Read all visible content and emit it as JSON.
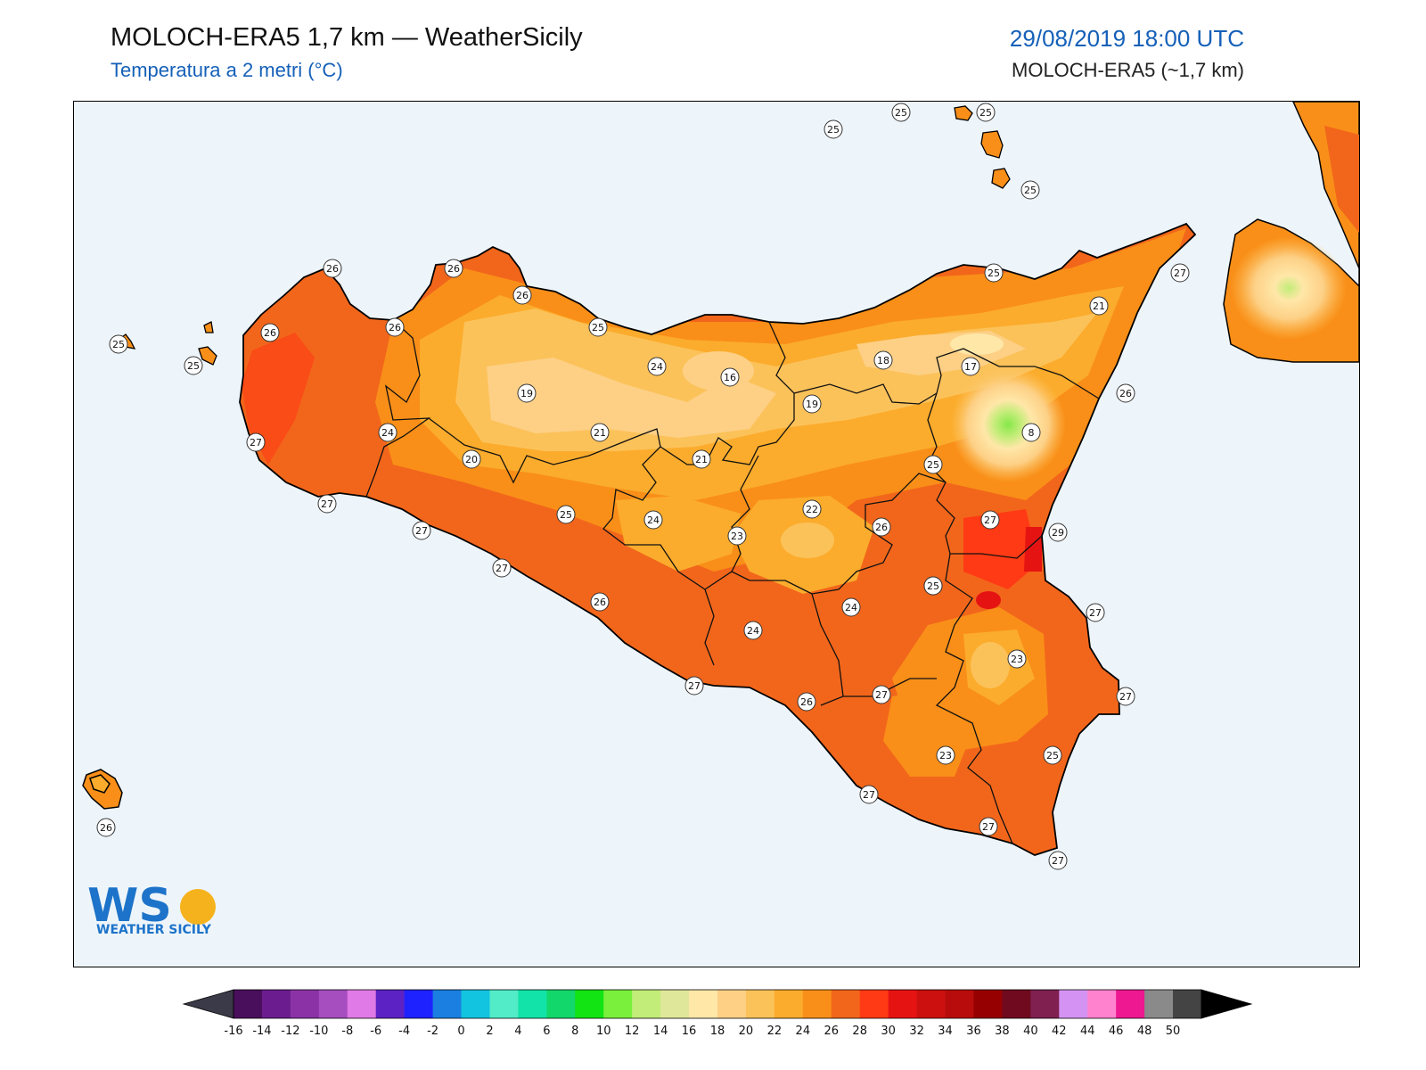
{
  "header": {
    "title": "MOLOCH-ERA5 1,7 km — WeatherSicily",
    "subtitle": "Temperatura a 2 metri (°C)",
    "datetime": "29/08/2019 18:00 UTC",
    "model": "MOLOCH-ERA5 (~1,7 km)"
  },
  "logo": {
    "letters": "WS",
    "text": "WEATHER SICILY"
  },
  "colors": {
    "sea": "#eef5fa",
    "t16": "#ffe7a8",
    "t18": "#fdd086",
    "t20": "#fcc25a",
    "t22": "#fbac2c",
    "t24": "#f98f18",
    "t26": "#f2661b",
    "t28": "#ff3a14",
    "t30": "#e61313",
    "green": "#86e84a"
  },
  "map_labels": [
    {
      "v": "25"
    },
    {
      "v": "25"
    },
    {
      "v": "25"
    },
    {
      "v": "25"
    },
    {
      "v": "26"
    },
    {
      "v": "26"
    },
    {
      "v": "26"
    },
    {
      "v": "26"
    },
    {
      "v": "26"
    },
    {
      "v": "25"
    },
    {
      "v": "25"
    },
    {
      "v": "25"
    },
    {
      "v": "27"
    },
    {
      "v": "25"
    },
    {
      "v": "27"
    },
    {
      "v": "24"
    },
    {
      "v": "20"
    },
    {
      "v": "19"
    },
    {
      "v": "21"
    },
    {
      "v": "24"
    },
    {
      "v": "16"
    },
    {
      "v": "21"
    },
    {
      "v": "18"
    },
    {
      "v": "19"
    },
    {
      "v": "17"
    },
    {
      "v": "25"
    },
    {
      "v": "21"
    },
    {
      "v": "27"
    },
    {
      "v": "26"
    },
    {
      "v": "8"
    },
    {
      "v": "25"
    },
    {
      "v": "22"
    },
    {
      "v": "26"
    },
    {
      "v": "27"
    },
    {
      "v": "29"
    },
    {
      "v": "27"
    },
    {
      "v": "25"
    },
    {
      "v": "24"
    },
    {
      "v": "23"
    },
    {
      "v": "25"
    },
    {
      "v": "24"
    },
    {
      "v": "24"
    },
    {
      "v": "26"
    },
    {
      "v": "27"
    },
    {
      "v": "27"
    },
    {
      "v": "26"
    },
    {
      "v": "27"
    },
    {
      "v": "23"
    },
    {
      "v": "27"
    },
    {
      "v": "27"
    },
    {
      "v": "23"
    },
    {
      "v": "25"
    },
    {
      "v": "27"
    },
    {
      "v": "27"
    },
    {
      "v": "27"
    },
    {
      "v": "26"
    }
  ],
  "colorbar": {
    "ticks": [
      "-16",
      "-14",
      "-12",
      "-10",
      "-8",
      "-6",
      "-4",
      "-2",
      "0",
      "2",
      "4",
      "6",
      "8",
      "10",
      "12",
      "14",
      "16",
      "18",
      "20",
      "22",
      "24",
      "26",
      "28",
      "30",
      "32",
      "34",
      "36",
      "38",
      "40",
      "42",
      "44",
      "46",
      "48",
      "50"
    ],
    "colors": [
      "#4a0f5c",
      "#6b1d8f",
      "#8b33a6",
      "#a64dbf",
      "#e07ae6",
      "#5c22c4",
      "#1e22ff",
      "#1a7fe0",
      "#12c4e0",
      "#52ecc8",
      "#12e3a8",
      "#12d76a",
      "#12e312",
      "#7aef3c",
      "#c2ed78",
      "#dfe89a",
      "#ffe7a8",
      "#fdd086",
      "#fcc25a",
      "#fbac2c",
      "#f98f18",
      "#f2661b",
      "#ff3a14",
      "#e61313",
      "#cc1010",
      "#b80c0c",
      "#960000",
      "#700a1f",
      "#7f2050",
      "#d492f2",
      "#ff82cf",
      "#ee1891",
      "#8a8a8a",
      "#444444"
    ]
  }
}
